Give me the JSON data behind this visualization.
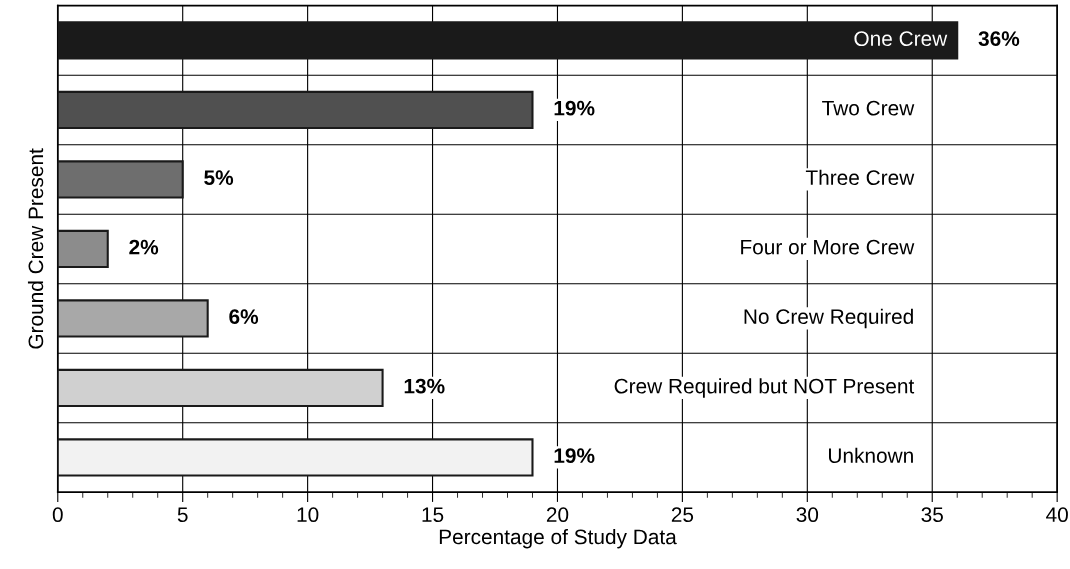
{
  "chart_data": {
    "type": "bar",
    "orientation": "horizontal",
    "xlabel": "Percentage of Study Data",
    "ylabel": "Ground Crew Present",
    "categories": [
      "One Crew",
      "Two Crew",
      "Three Crew",
      "Four or More Crew",
      "No Crew Required",
      "Crew Required but NOT Present",
      "Unknown"
    ],
    "values": [
      36,
      19,
      5,
      2,
      6,
      13,
      19
    ],
    "colors": [
      "#1a1a1a",
      "#505050",
      "#6e6e6e",
      "#8c8c8c",
      "#a8a8a8",
      "#d0d0d0",
      "#f2f2f2"
    ],
    "value_labels": [
      "36%",
      "19%",
      "5%",
      "2%",
      "6%",
      "13%",
      "19%"
    ],
    "xlim": [
      0,
      40
    ],
    "xticks": [
      0,
      5,
      10,
      15,
      20,
      25,
      30,
      35,
      40
    ],
    "grid": true,
    "tick_labels": "x"
  }
}
